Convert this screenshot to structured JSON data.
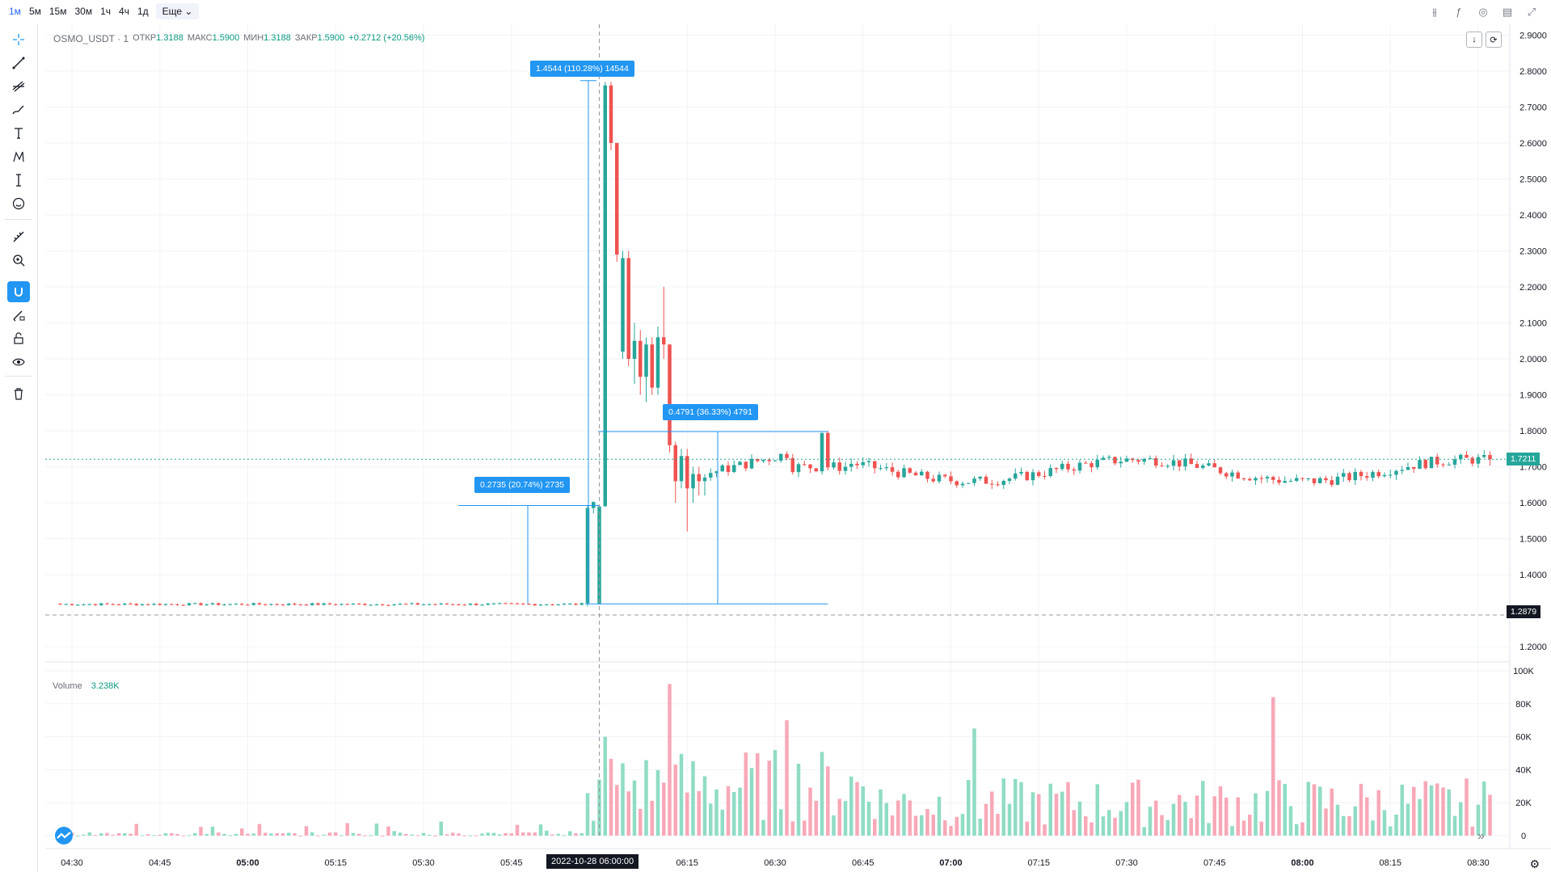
{
  "timeframes": [
    "1м",
    "5м",
    "15м",
    "30м",
    "1ч",
    "4ч",
    "1д"
  ],
  "more_label": "Еще",
  "legend": {
    "symbol": "OSMO_USDT · 1",
    "open_label": "ОТКР",
    "open": "1.3188",
    "high_label": "МАКС",
    "high": "1.5900",
    "low_label": "МИН",
    "low": "1.3188",
    "close_label": "ЗАКР",
    "close": "1.5900",
    "change": "+0.2712 (+20.56%)"
  },
  "volume_legend": {
    "label": "Volume",
    "value": "3.238K"
  },
  "callouts": {
    "big_move": "1.4544 (110.28%) 14544",
    "mid_move": "0.4791 (36.33%) 4791",
    "small_move": "0.2735 (20.74%) 2735"
  },
  "price_tags": {
    "current": "1.7211",
    "crosshair": "1.2879"
  },
  "crosshair_date": "2022-10-28   06:00:00",
  "colors": {
    "up": "#26a69a",
    "down": "#ef5350",
    "up_volume": "#8fdcc4",
    "down_volume": "#f8a8b8",
    "accent": "#2196f3"
  },
  "icons": [
    "crosshair-icon",
    "trend-line-icon",
    "fib-icon",
    "brush-icon",
    "text-icon",
    "pattern-icon",
    "measure-icon",
    "emoji-icon",
    "ruler-icon",
    "zoom-icon",
    "magnet-icon",
    "lock-drawing-icon",
    "lock-icon",
    "eye-icon",
    "trash-icon",
    "settings-icon"
  ],
  "chart_data": [
    {
      "type": "candlestick",
      "symbol": "OSMO_USDT",
      "interval": "1",
      "y_ticks": [
        "2.9000",
        "2.8000",
        "2.7000",
        "2.6000",
        "2.5000",
        "2.4000",
        "2.3000",
        "2.2000",
        "2.1000",
        "2.0000",
        "1.9000",
        "1.8000",
        "1.7000",
        "1.6000",
        "1.5000",
        "1.4000",
        "1.2000"
      ],
      "ylim": [
        1.16,
        2.93
      ],
      "x_ticks": [
        "04:30",
        "04:45",
        "05:00",
        "05:15",
        "05:30",
        "05:45",
        "06:15",
        "06:30",
        "06:45",
        "07:00",
        "07:15",
        "07:30",
        "07:45",
        "08:00",
        "08:15",
        "08:30"
      ],
      "x_minutes_first_tick": "04:30",
      "key_candles": [
        {
          "time": "06:00",
          "open": 1.3188,
          "high": 1.59,
          "low": 1.3188,
          "close": 1.59
        },
        {
          "time": "06:01",
          "open": 1.59,
          "high": 2.77,
          "low": 1.59,
          "close": 2.76
        },
        {
          "time": "06:02",
          "open": 2.76,
          "high": 2.77,
          "low": 2.58,
          "close": 2.6
        },
        {
          "time": "06:03",
          "open": 2.6,
          "high": 2.6,
          "low": 2.27,
          "close": 2.29
        }
      ],
      "current_price": 1.7211
    },
    {
      "type": "bar",
      "series_label": "Volume",
      "y_ticks": [
        "100K",
        "80K",
        "60K",
        "40K",
        "20K",
        "0"
      ],
      "ylim": [
        0,
        100000
      ]
    }
  ]
}
